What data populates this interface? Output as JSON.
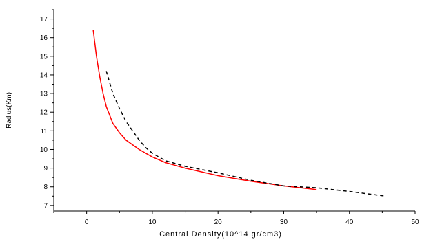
{
  "chart_data": {
    "type": "line",
    "title": "",
    "xlabel": "Central Density(10^14 gr/cm3)",
    "ylabel": "Radius(Km)",
    "xlim": [
      -5,
      50
    ],
    "ylim": [
      6.7,
      17.5
    ],
    "x_ticks": [
      0,
      10,
      20,
      30,
      40,
      50
    ],
    "y_ticks": [
      7,
      8,
      9,
      10,
      11,
      12,
      13,
      14,
      15,
      16,
      17
    ],
    "grid": false,
    "legend": "none",
    "series": [
      {
        "color": "#ff0000",
        "style": "solid",
        "x": [
          1.0,
          1.5,
          2.0,
          2.5,
          3.0,
          4.0,
          5.0,
          6.0,
          8.0,
          10.0,
          12.0,
          15.0,
          20.0,
          25.0,
          30.0,
          35.0
        ],
        "y": [
          16.4,
          15.0,
          13.9,
          13.0,
          12.3,
          11.4,
          10.9,
          10.5,
          10.0,
          9.6,
          9.3,
          9.0,
          8.6,
          8.3,
          8.05,
          7.85
        ]
      },
      {
        "color": "#000000",
        "style": "dashed",
        "x": [
          3.0,
          4.0,
          5.0,
          6.0,
          7.0,
          8.0,
          9.0,
          10.0,
          12.0,
          15.0,
          20.0,
          25.0,
          30.0,
          35.0,
          40.0,
          45.5
        ],
        "y": [
          14.2,
          13.0,
          12.2,
          11.5,
          11.0,
          10.5,
          10.1,
          9.8,
          9.4,
          9.1,
          8.75,
          8.35,
          8.05,
          7.95,
          7.75,
          7.5
        ]
      }
    ]
  }
}
